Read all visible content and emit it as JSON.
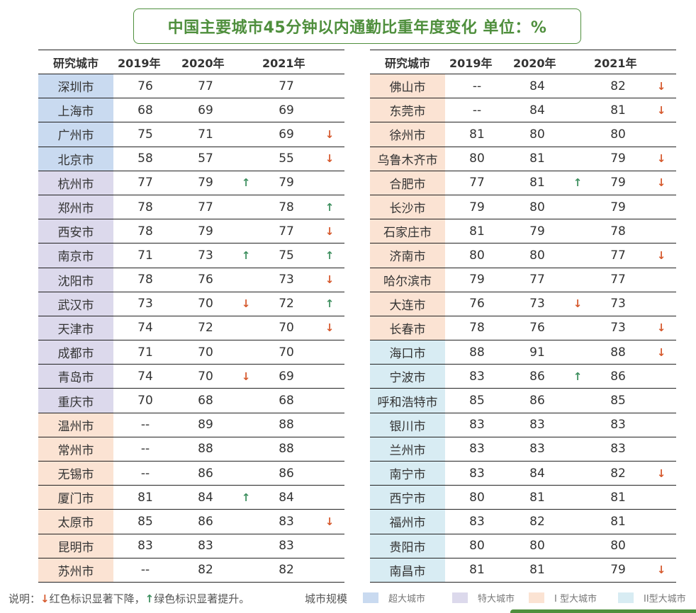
{
  "title": "中国主要城市45分钟以内通勤比重年度变化  单位：%",
  "headers": [
    "研究城市",
    "2019年",
    "2020年",
    "2021年"
  ],
  "colors": {
    "title_green": "#4f8f3d",
    "up_green": "#3e8f5f",
    "down_red": "#d65a2e",
    "super": "#c9daf0",
    "mega": "#dcd9ec",
    "type1": "#fbe3d3",
    "type2": "#d8ecf3"
  },
  "left_rows": [
    {
      "city": "深圳市",
      "cat": "super",
      "y2019": "76",
      "y2020": "77",
      "a2020": "",
      "y2021": "77",
      "a2021": ""
    },
    {
      "city": "上海市",
      "cat": "super",
      "y2019": "68",
      "y2020": "69",
      "a2020": "",
      "y2021": "69",
      "a2021": ""
    },
    {
      "city": "广州市",
      "cat": "super",
      "y2019": "75",
      "y2020": "71",
      "a2020": "",
      "y2021": "69",
      "a2021": "down"
    },
    {
      "city": "北京市",
      "cat": "super",
      "y2019": "58",
      "y2020": "57",
      "a2020": "",
      "y2021": "55",
      "a2021": "down"
    },
    {
      "city": "杭州市",
      "cat": "mega",
      "y2019": "77",
      "y2020": "79",
      "a2020": "up",
      "y2021": "79",
      "a2021": ""
    },
    {
      "city": "郑州市",
      "cat": "mega",
      "y2019": "78",
      "y2020": "77",
      "a2020": "",
      "y2021": "78",
      "a2021": "up"
    },
    {
      "city": "西安市",
      "cat": "mega",
      "y2019": "78",
      "y2020": "79",
      "a2020": "",
      "y2021": "77",
      "a2021": "down"
    },
    {
      "city": "南京市",
      "cat": "mega",
      "y2019": "71",
      "y2020": "73",
      "a2020": "up",
      "y2021": "75",
      "a2021": "up"
    },
    {
      "city": "沈阳市",
      "cat": "mega",
      "y2019": "78",
      "y2020": "76",
      "a2020": "",
      "y2021": "73",
      "a2021": "down"
    },
    {
      "city": "武汉市",
      "cat": "mega",
      "y2019": "73",
      "y2020": "70",
      "a2020": "down",
      "y2021": "72",
      "a2021": "up"
    },
    {
      "city": "天津市",
      "cat": "mega",
      "y2019": "74",
      "y2020": "72",
      "a2020": "",
      "y2021": "70",
      "a2021": "down"
    },
    {
      "city": "成都市",
      "cat": "mega",
      "y2019": "71",
      "y2020": "70",
      "a2020": "",
      "y2021": "70",
      "a2021": ""
    },
    {
      "city": "青岛市",
      "cat": "mega",
      "y2019": "74",
      "y2020": "70",
      "a2020": "down",
      "y2021": "69",
      "a2021": ""
    },
    {
      "city": "重庆市",
      "cat": "mega",
      "y2019": "70",
      "y2020": "68",
      "a2020": "",
      "y2021": "68",
      "a2021": ""
    },
    {
      "city": "温州市",
      "cat": "type1",
      "y2019": "--",
      "y2020": "89",
      "a2020": "",
      "y2021": "88",
      "a2021": ""
    },
    {
      "city": "常州市",
      "cat": "type1",
      "y2019": "--",
      "y2020": "88",
      "a2020": "",
      "y2021": "88",
      "a2021": ""
    },
    {
      "city": "无锡市",
      "cat": "type1",
      "y2019": "--",
      "y2020": "86",
      "a2020": "",
      "y2021": "86",
      "a2021": ""
    },
    {
      "city": "厦门市",
      "cat": "type1",
      "y2019": "81",
      "y2020": "84",
      "a2020": "up",
      "y2021": "84",
      "a2021": ""
    },
    {
      "city": "太原市",
      "cat": "type1",
      "y2019": "85",
      "y2020": "86",
      "a2020": "",
      "y2021": "83",
      "a2021": "down"
    },
    {
      "city": "昆明市",
      "cat": "type1",
      "y2019": "83",
      "y2020": "83",
      "a2020": "",
      "y2021": "83",
      "a2021": ""
    },
    {
      "city": "苏州市",
      "cat": "type1",
      "y2019": "--",
      "y2020": "82",
      "a2020": "",
      "y2021": "82",
      "a2021": ""
    }
  ],
  "right_rows": [
    {
      "city": "佛山市",
      "cat": "type1",
      "y2019": "--",
      "y2020": "84",
      "a2020": "",
      "y2021": "82",
      "a2021": "down"
    },
    {
      "city": "东莞市",
      "cat": "type1",
      "y2019": "--",
      "y2020": "84",
      "a2020": "",
      "y2021": "81",
      "a2021": "down"
    },
    {
      "city": "徐州市",
      "cat": "type1",
      "y2019": "81",
      "y2020": "80",
      "a2020": "",
      "y2021": "80",
      "a2021": ""
    },
    {
      "city": "乌鲁木齐市",
      "cat": "type1",
      "y2019": "80",
      "y2020": "81",
      "a2020": "",
      "y2021": "79",
      "a2021": "down"
    },
    {
      "city": "合肥市",
      "cat": "type1",
      "y2019": "77",
      "y2020": "81",
      "a2020": "up",
      "y2021": "79",
      "a2021": "down"
    },
    {
      "city": "长沙市",
      "cat": "type1",
      "y2019": "79",
      "y2020": "80",
      "a2020": "",
      "y2021": "79",
      "a2021": ""
    },
    {
      "city": "石家庄市",
      "cat": "type1",
      "y2019": "81",
      "y2020": "79",
      "a2020": "",
      "y2021": "78",
      "a2021": ""
    },
    {
      "city": "济南市",
      "cat": "type1",
      "y2019": "80",
      "y2020": "80",
      "a2020": "",
      "y2021": "77",
      "a2021": "down"
    },
    {
      "city": "哈尔滨市",
      "cat": "type1",
      "y2019": "79",
      "y2020": "77",
      "a2020": "",
      "y2021": "77",
      "a2021": ""
    },
    {
      "city": "大连市",
      "cat": "type1",
      "y2019": "76",
      "y2020": "73",
      "a2020": "down",
      "y2021": "73",
      "a2021": ""
    },
    {
      "city": "长春市",
      "cat": "type1",
      "y2019": "78",
      "y2020": "76",
      "a2020": "",
      "y2021": "73",
      "a2021": "down"
    },
    {
      "city": "海口市",
      "cat": "type2",
      "y2019": "88",
      "y2020": "91",
      "a2020": "",
      "y2021": "88",
      "a2021": "down"
    },
    {
      "city": "宁波市",
      "cat": "type2",
      "y2019": "83",
      "y2020": "86",
      "a2020": "up",
      "y2021": "86",
      "a2021": ""
    },
    {
      "city": "呼和浩特市",
      "cat": "type2",
      "y2019": "85",
      "y2020": "86",
      "a2020": "",
      "y2021": "85",
      "a2021": ""
    },
    {
      "city": "银川市",
      "cat": "type2",
      "y2019": "83",
      "y2020": "83",
      "a2020": "",
      "y2021": "83",
      "a2021": ""
    },
    {
      "city": "兰州市",
      "cat": "type2",
      "y2019": "83",
      "y2020": "83",
      "a2020": "",
      "y2021": "83",
      "a2021": ""
    },
    {
      "city": "南宁市",
      "cat": "type2",
      "y2019": "83",
      "y2020": "84",
      "a2020": "",
      "y2021": "82",
      "a2021": "down"
    },
    {
      "city": "西宁市",
      "cat": "type2",
      "y2019": "80",
      "y2020": "81",
      "a2020": "",
      "y2021": "81",
      "a2021": ""
    },
    {
      "city": "福州市",
      "cat": "type2",
      "y2019": "83",
      "y2020": "82",
      "a2020": "",
      "y2021": "81",
      "a2021": ""
    },
    {
      "city": "贵阳市",
      "cat": "type2",
      "y2019": "80",
      "y2020": "80",
      "a2020": "",
      "y2021": "80",
      "a2021": ""
    },
    {
      "city": "南昌市",
      "cat": "type2",
      "y2019": "81",
      "y2020": "81",
      "a2020": "",
      "y2021": "79",
      "a2021": "down"
    }
  ],
  "footer": {
    "note_prefix": "说明：",
    "note_red": "红色标识显著下降，",
    "note_green": "绿色标识显著提升。",
    "scale_label": "城市规模",
    "legend": [
      {
        "label": "超大城市",
        "cat": "super"
      },
      {
        "label": "特大城市",
        "cat": "mega"
      },
      {
        "label": "I 型大城市",
        "cat": "type1"
      },
      {
        "label": "II型大城市",
        "cat": "type2"
      }
    ]
  }
}
